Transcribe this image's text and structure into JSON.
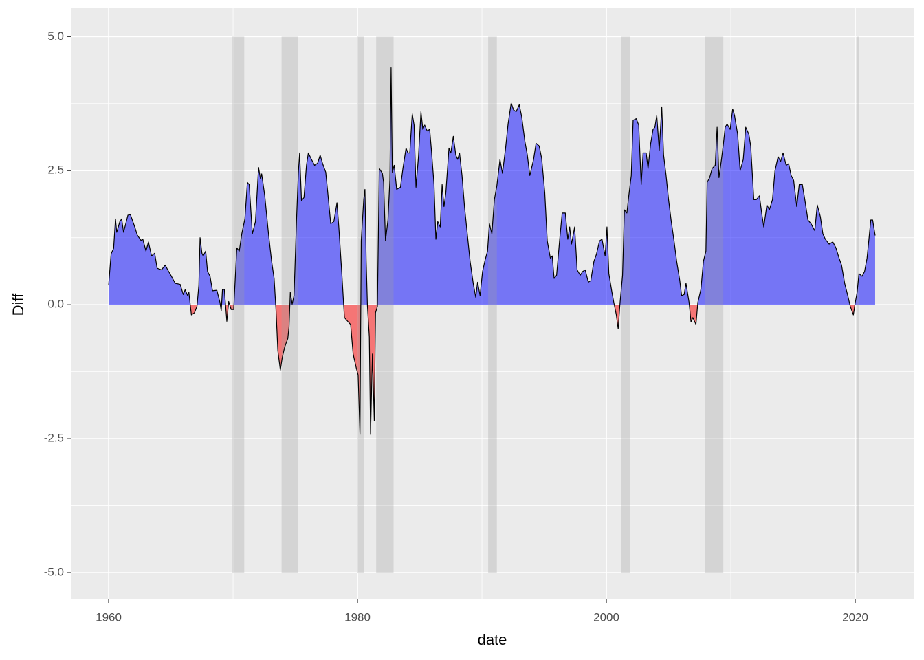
{
  "chart_data": {
    "type": "area",
    "x_label": "date",
    "y_label": "Diff",
    "xlim": [
      1956.96,
      2024.75
    ],
    "ylim": [
      -5.5,
      5.53
    ],
    "xticks": [
      1960,
      1980,
      2000,
      2020
    ],
    "minor_xticks": [
      1970,
      1990,
      2010
    ],
    "yticks": [
      {
        "value": -5,
        "label": "-5.0"
      },
      {
        "value": -2.5,
        "label": "-2.5"
      },
      {
        "value": 0,
        "label": "0.0"
      },
      {
        "value": 2.5,
        "label": "2.5"
      },
      {
        "value": 5,
        "label": "5.0"
      }
    ],
    "minor_yticks": [
      -3.75,
      -1.25,
      1.25,
      3.75
    ],
    "grid": true,
    "positive_color": "blue",
    "negative_color": "red",
    "fill_alpha": 0.5,
    "line_color": "black",
    "recession_color": "#a0a0a0",
    "recession_alpha": 0.3,
    "recession_ylim": [
      -5,
      5
    ],
    "recessions": [
      [
        1969.9,
        1970.9
      ],
      [
        1973.9,
        1975.2
      ],
      [
        1980.0,
        1980.5
      ],
      [
        1981.5,
        1982.9
      ],
      [
        1990.5,
        1991.2
      ],
      [
        2001.2,
        2001.9
      ],
      [
        2007.9,
        2009.4
      ],
      [
        2020.1,
        2020.3
      ]
    ],
    "x": [
      1960.0,
      1960.2,
      1960.4,
      1960.55,
      1960.65,
      1960.9,
      1961.05,
      1961.2,
      1961.55,
      1961.75,
      1962.1,
      1962.3,
      1962.6,
      1962.75,
      1963.0,
      1963.2,
      1963.45,
      1963.7,
      1963.9,
      1964.25,
      1964.55,
      1964.75,
      1965.0,
      1965.35,
      1965.75,
      1966.0,
      1966.15,
      1966.35,
      1966.45,
      1966.65,
      1966.9,
      1967.1,
      1967.25,
      1967.35,
      1967.5,
      1967.6,
      1967.8,
      1967.95,
      1968.15,
      1968.35,
      1968.7,
      1968.95,
      1969.05,
      1969.15,
      1969.3,
      1969.5,
      1969.65,
      1969.85,
      1970.05,
      1970.3,
      1970.5,
      1970.7,
      1970.95,
      1971.15,
      1971.3,
      1971.55,
      1971.8,
      1972.05,
      1972.2,
      1972.3,
      1972.55,
      1972.85,
      1973.1,
      1973.3,
      1973.45,
      1973.6,
      1973.8,
      1973.95,
      1974.15,
      1974.4,
      1974.5,
      1974.6,
      1974.75,
      1974.9,
      1975.1,
      1975.25,
      1975.35,
      1975.5,
      1975.7,
      1975.9,
      1976.05,
      1976.3,
      1976.55,
      1976.8,
      1977.0,
      1977.2,
      1977.45,
      1977.6,
      1977.85,
      1978.1,
      1978.35,
      1978.5,
      1978.75,
      1978.95,
      1979.25,
      1979.45,
      1979.65,
      1979.9,
      1980.05,
      1980.2,
      1980.3,
      1980.5,
      1980.6,
      1980.7,
      1980.8,
      1980.95,
      1981.05,
      1981.2,
      1981.35,
      1981.45,
      1981.6,
      1981.75,
      1982.0,
      1982.1,
      1982.25,
      1982.45,
      1982.6,
      1982.7,
      1982.8,
      1982.95,
      1983.15,
      1983.45,
      1983.65,
      1983.9,
      1984.05,
      1984.2,
      1984.4,
      1984.55,
      1984.7,
      1984.9,
      1985.1,
      1985.25,
      1985.4,
      1985.6,
      1985.8,
      1985.95,
      1986.15,
      1986.3,
      1986.45,
      1986.65,
      1986.8,
      1986.95,
      1987.1,
      1987.35,
      1987.5,
      1987.7,
      1987.9,
      1988.05,
      1988.2,
      1988.4,
      1988.6,
      1988.85,
      1989.05,
      1989.3,
      1989.5,
      1989.65,
      1989.85,
      1990.05,
      1990.25,
      1990.45,
      1990.6,
      1990.8,
      1991.0,
      1991.2,
      1991.45,
      1991.65,
      1991.9,
      1992.1,
      1992.35,
      1992.55,
      1992.75,
      1993.0,
      1993.2,
      1993.45,
      1993.65,
      1993.85,
      1994.15,
      1994.35,
      1994.6,
      1994.8,
      1995.05,
      1995.25,
      1995.5,
      1995.65,
      1995.8,
      1996.0,
      1996.25,
      1996.45,
      1996.7,
      1996.9,
      1997.05,
      1997.2,
      1997.45,
      1997.65,
      1997.9,
      1998.1,
      1998.3,
      1998.55,
      1998.75,
      1999.0,
      1999.2,
      1999.45,
      1999.65,
      1999.9,
      2000.05,
      2000.2,
      2000.45,
      2000.6,
      2000.8,
      2000.95,
      2001.1,
      2001.3,
      2001.45,
      2001.65,
      2001.8,
      2002.0,
      2002.15,
      2002.4,
      2002.6,
      2002.8,
      2002.95,
      2003.2,
      2003.35,
      2003.55,
      2003.75,
      2003.9,
      2004.05,
      2004.25,
      2004.45,
      2004.6,
      2004.8,
      2005.0,
      2005.2,
      2005.45,
      2005.65,
      2005.9,
      2006.05,
      2006.25,
      2006.4,
      2006.65,
      2006.8,
      2006.95,
      2007.2,
      2007.35,
      2007.6,
      2007.8,
      2008.0,
      2008.1,
      2008.3,
      2008.5,
      2008.75,
      2008.9,
      2009.05,
      2009.25,
      2009.4,
      2009.55,
      2009.7,
      2009.95,
      2010.15,
      2010.3,
      2010.55,
      2010.75,
      2011.0,
      2011.2,
      2011.45,
      2011.6,
      2011.85,
      2012.05,
      2012.3,
      2012.5,
      2012.65,
      2012.9,
      2013.1,
      2013.35,
      2013.55,
      2013.8,
      2014.0,
      2014.2,
      2014.45,
      2014.65,
      2014.85,
      2015.05,
      2015.3,
      2015.5,
      2015.75,
      2015.95,
      2016.2,
      2016.45,
      2016.75,
      2016.95,
      2017.2,
      2017.4,
      2017.6,
      2017.9,
      2018.2,
      2018.45,
      2018.7,
      2018.9,
      2019.15,
      2019.4,
      2019.6,
      2019.85,
      2020.0,
      2020.15,
      2020.3,
      2020.55,
      2020.75,
      2020.95,
      2021.1,
      2021.25,
      2021.4,
      2021.6
    ],
    "values": [
      0.36,
      0.95,
      1.05,
      1.6,
      1.35,
      1.55,
      1.6,
      1.35,
      1.67,
      1.68,
      1.45,
      1.3,
      1.2,
      1.22,
      1.0,
      1.17,
      0.91,
      0.96,
      0.68,
      0.65,
      0.74,
      0.65,
      0.55,
      0.4,
      0.38,
      0.19,
      0.28,
      0.17,
      0.23,
      -0.19,
      -0.15,
      -0.03,
      0.36,
      1.25,
      0.96,
      0.91,
      1.0,
      0.62,
      0.53,
      0.26,
      0.27,
      0.04,
      -0.12,
      0.29,
      0.28,
      -0.31,
      0.06,
      -0.09,
      -0.09,
      1.06,
      1.0,
      1.32,
      1.6,
      2.28,
      2.24,
      1.32,
      1.55,
      2.56,
      2.35,
      2.44,
      2.03,
      1.32,
      0.81,
      0.49,
      -0.09,
      -0.86,
      -1.22,
      -0.99,
      -0.79,
      -0.63,
      -0.41,
      0.23,
      0.01,
      0.17,
      1.58,
      2.47,
      2.83,
      1.94,
      2.0,
      2.6,
      2.83,
      2.71,
      2.6,
      2.64,
      2.79,
      2.63,
      2.47,
      2.12,
      1.51,
      1.55,
      1.9,
      1.45,
      0.55,
      -0.24,
      -0.32,
      -0.37,
      -0.92,
      -1.18,
      -1.31,
      -2.42,
      1.19,
      1.96,
      2.15,
      0.81,
      -0.03,
      -0.6,
      -2.42,
      -0.92,
      -2.17,
      -0.15,
      -0.03,
      2.54,
      2.45,
      2.28,
      1.19,
      1.58,
      2.32,
      4.42,
      2.47,
      2.6,
      2.15,
      2.19,
      2.54,
      2.92,
      2.83,
      2.83,
      3.56,
      3.35,
      2.19,
      2.76,
      3.6,
      3.27,
      3.35,
      3.24,
      3.27,
      2.86,
      2.24,
      1.22,
      1.55,
      1.45,
      2.24,
      1.83,
      2.09,
      2.92,
      2.83,
      3.14,
      2.79,
      2.71,
      2.83,
      2.41,
      1.83,
      1.26,
      0.81,
      0.4,
      0.14,
      0.42,
      0.17,
      0.62,
      0.83,
      1.0,
      1.51,
      1.32,
      1.96,
      2.22,
      2.71,
      2.45,
      2.92,
      3.37,
      3.76,
      3.63,
      3.6,
      3.73,
      3.5,
      3.05,
      2.79,
      2.41,
      2.71,
      3.01,
      2.96,
      2.73,
      2.09,
      1.19,
      0.87,
      0.91,
      0.49,
      0.55,
      1.22,
      1.71,
      1.71,
      1.22,
      1.45,
      1.13,
      1.45,
      0.65,
      0.55,
      0.62,
      0.65,
      0.42,
      0.45,
      0.81,
      0.94,
      1.19,
      1.22,
      0.91,
      1.45,
      0.58,
      0.23,
      0.04,
      -0.19,
      -0.45,
      0.04,
      0.55,
      1.77,
      1.71,
      2.03,
      2.41,
      3.44,
      3.47,
      3.35,
      2.24,
      2.83,
      2.83,
      2.54,
      2.99,
      3.27,
      3.31,
      3.53,
      2.88,
      3.69,
      2.79,
      2.41,
      1.96,
      1.58,
      1.17,
      0.81,
      0.45,
      0.17,
      0.19,
      0.4,
      0.04,
      -0.32,
      -0.24,
      -0.37,
      0.04,
      0.29,
      0.81,
      1.0,
      2.28,
      2.37,
      2.54,
      2.6,
      3.31,
      2.37,
      2.71,
      2.99,
      3.31,
      3.37,
      3.27,
      3.65,
      3.53,
      3.18,
      2.5,
      2.71,
      3.31,
      3.18,
      2.96,
      1.96,
      1.96,
      2.03,
      1.68,
      1.45,
      1.86,
      1.77,
      1.96,
      2.5,
      2.76,
      2.67,
      2.83,
      2.6,
      2.63,
      2.41,
      2.32,
      1.83,
      2.24,
      2.24,
      1.96,
      1.58,
      1.51,
      1.38,
      1.86,
      1.64,
      1.32,
      1.22,
      1.13,
      1.17,
      1.06,
      0.87,
      0.74,
      0.4,
      0.17,
      -0.03,
      -0.19,
      0.04,
      0.23,
      0.58,
      0.53,
      0.62,
      0.87,
      1.22,
      1.58,
      1.58,
      1.29
    ]
  }
}
